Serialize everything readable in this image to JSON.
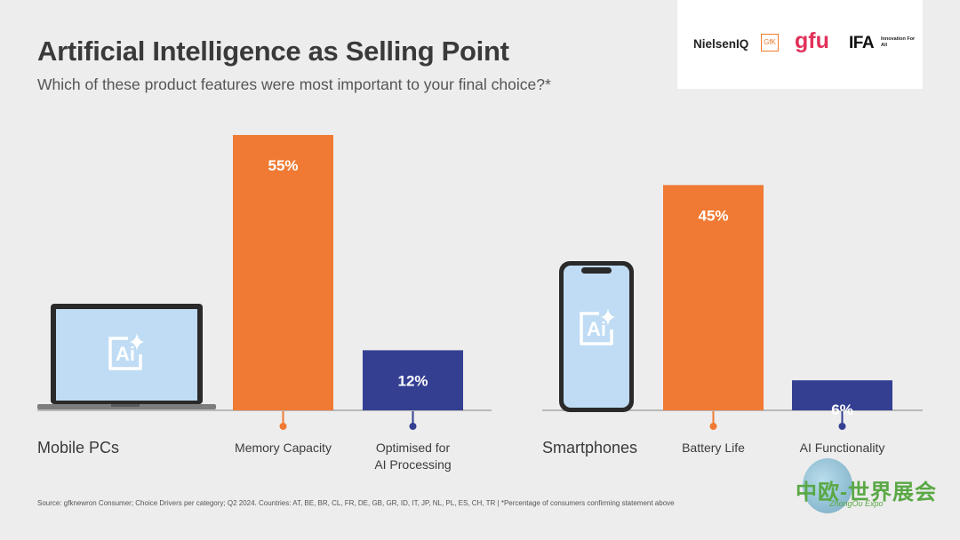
{
  "title": "Artificial Intelligence as Selling Point",
  "subtitle": "Which of these product features were most important to your final choice?*",
  "logos": {
    "nielsen": "NielsenIQ",
    "gfk": "GfK",
    "gfu": "gfu",
    "ifa": "IFA",
    "ifa_tagline": "Innovation For All"
  },
  "source": "Source: gfknewron Consumer; Choice Drivers per category; Q2 2024. Countries: AT, BE, BR, CL, FR, DE, GB, GR, ID, IT, JP, NL, PL, ES, CH, TR | *Percentage of consumers confirming statement above",
  "watermark": {
    "text": "中欧-世界展会",
    "sub": "ZhongOu Expo"
  },
  "icon_label": "Ai",
  "colors": {
    "orange": "#f07a33",
    "navy": "#343f92",
    "baseline": "#b9b9b9",
    "device_screen": "#bfdcf4"
  },
  "chart_data": [
    {
      "type": "bar",
      "group_label": "Mobile PCs",
      "categories": [
        "Memory Capacity",
        "Optimised for AI Processing"
      ],
      "category_lines": [
        [
          "Memory Capacity"
        ],
        [
          "Optimised for",
          "AI Processing"
        ]
      ],
      "values": [
        55,
        12
      ],
      "value_labels": [
        "55%",
        "12%"
      ],
      "unit": "%",
      "ylim": [
        0,
        55
      ],
      "bar_colors": [
        "#f07a33",
        "#343f92"
      ],
      "grid": false
    },
    {
      "type": "bar",
      "group_label": "Smartphones",
      "categories": [
        "Battery Life",
        "AI Functionality"
      ],
      "category_lines": [
        [
          "Battery Life"
        ],
        [
          "AI Functionality"
        ]
      ],
      "values": [
        45,
        6
      ],
      "value_labels": [
        "45%",
        "6%"
      ],
      "unit": "%",
      "ylim": [
        0,
        55
      ],
      "bar_colors": [
        "#f07a33",
        "#343f92"
      ],
      "grid": false
    }
  ]
}
